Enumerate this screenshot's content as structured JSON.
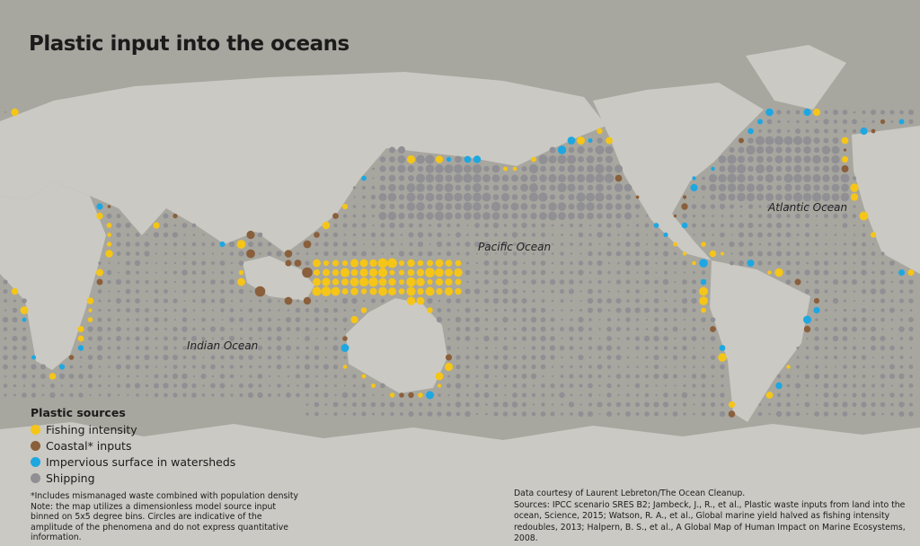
{
  "title": "Plastic input into the oceans",
  "ocean_labels": {
    "pacific": "Pacific Ocean",
    "atlantic": "Atlantic Ocean",
    "indian": "Indian Ocean"
  },
  "legend": {
    "title": "Plastic sources",
    "items": [
      {
        "label": "Fishing intensity",
        "color": "#f5c518"
      },
      {
        "label": "Coastal* inputs",
        "color": "#8a5f3c"
      },
      {
        "label": "Impervious surface in watersheds",
        "color": "#1ea7e1"
      },
      {
        "label": "Shipping",
        "color": "#8f8f94"
      }
    ]
  },
  "notes": {
    "footnote": "*Includes mismanaged waste combined with population density",
    "note": "Note:  the map utilizes a dimensionless model source input binned on 5x5 degree bins. Circles are indicative of the amplitude of the phenomena and do not express quantitative information."
  },
  "sources": {
    "credit": "Data courtesy of Laurent Lebreton/The Ocean Cleanup.",
    "text": "Sources: IPCC scenario SRES B2; Jambeck, J., R., et al., Plastic waste inputs from land into the ocean, Science, 2015;  Watson, R. A., et al., Global marine yield halved as fishing intensity redoubles, 2013; Halpern, B. S., et al., A Global Map of Human Impact on Marine Ecosystems, 2008."
  },
  "colors": {
    "ocean": "#a7a69f",
    "land": "#cbc9c3"
  }
}
